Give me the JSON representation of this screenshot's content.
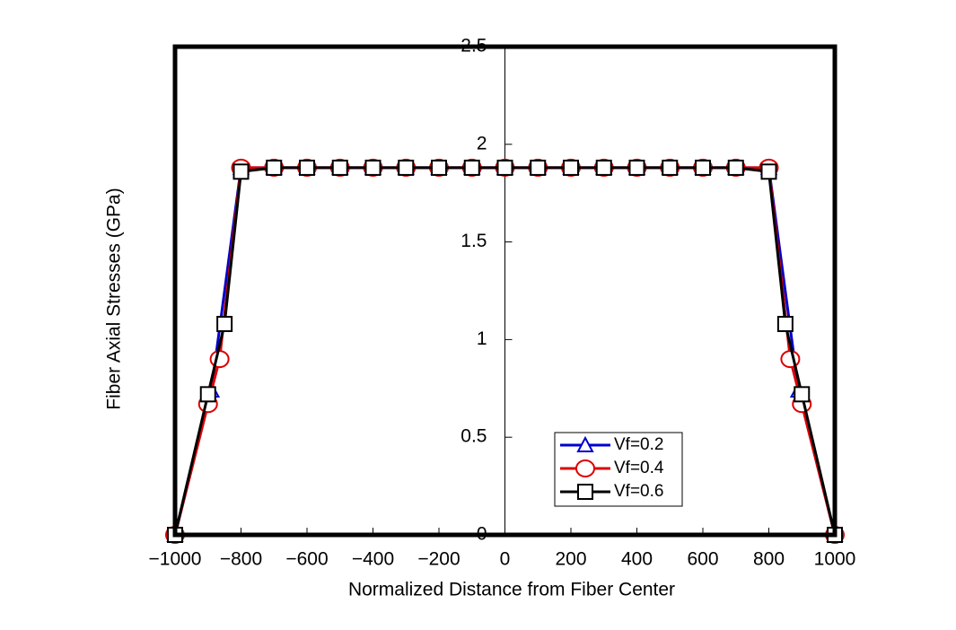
{
  "chart_data": {
    "type": "line",
    "x_label": "Normalized Distance from Fiber Center",
    "y_label": "Fiber Axial Stresses (GPa)",
    "xlim": [
      -1000,
      1000
    ],
    "ylim": [
      0,
      2.5
    ],
    "xticks": [
      {
        "value": -1000,
        "label": "−1000"
      },
      {
        "value": -800,
        "label": "−800"
      },
      {
        "value": -600,
        "label": "−600"
      },
      {
        "value": -400,
        "label": "−400"
      },
      {
        "value": -200,
        "label": "−200"
      },
      0,
      200,
      400,
      600,
      800,
      1000
    ],
    "yticks": [
      0,
      0.5,
      1,
      1.5,
      2,
      2.5
    ],
    "grid": false,
    "legend": "lower right",
    "series": [
      {
        "name": "Vf=0.2",
        "color": "#0000cc",
        "marker": "triangle",
        "x": [
          -1000,
          -890,
          -800,
          -700,
          -600,
          -500,
          -400,
          -300,
          -200,
          -100,
          0,
          100,
          200,
          300,
          400,
          500,
          600,
          700,
          800,
          890,
          1000
        ],
        "values": [
          0,
          0.74,
          1.88,
          1.88,
          1.88,
          1.88,
          1.88,
          1.88,
          1.88,
          1.88,
          1.88,
          1.88,
          1.88,
          1.88,
          1.88,
          1.88,
          1.88,
          1.88,
          1.88,
          0.74,
          0
        ]
      },
      {
        "name": "Vf=0.4",
        "color": "#dd0000",
        "marker": "circle",
        "x": [
          -1000,
          -900,
          -865,
          -800,
          -700,
          -600,
          -500,
          -400,
          -300,
          -200,
          -100,
          0,
          100,
          200,
          300,
          400,
          500,
          600,
          700,
          800,
          865,
          900,
          1000
        ],
        "values": [
          0,
          0.67,
          0.9,
          1.88,
          1.88,
          1.88,
          1.88,
          1.88,
          1.88,
          1.88,
          1.88,
          1.88,
          1.88,
          1.88,
          1.88,
          1.88,
          1.88,
          1.88,
          1.88,
          1.88,
          0.9,
          0.67,
          0
        ]
      },
      {
        "name": "Vf=0.6",
        "color": "#000000",
        "marker": "square",
        "x": [
          -1000,
          -900,
          -850,
          -800,
          -700,
          -600,
          -500,
          -400,
          -300,
          -200,
          -100,
          0,
          100,
          200,
          300,
          400,
          500,
          600,
          700,
          800,
          850,
          900,
          1000
        ],
        "values": [
          0,
          0.72,
          1.08,
          1.86,
          1.88,
          1.88,
          1.88,
          1.88,
          1.88,
          1.88,
          1.88,
          1.88,
          1.88,
          1.88,
          1.88,
          1.88,
          1.88,
          1.88,
          1.88,
          1.86,
          1.08,
          0.72,
          0
        ]
      }
    ]
  }
}
